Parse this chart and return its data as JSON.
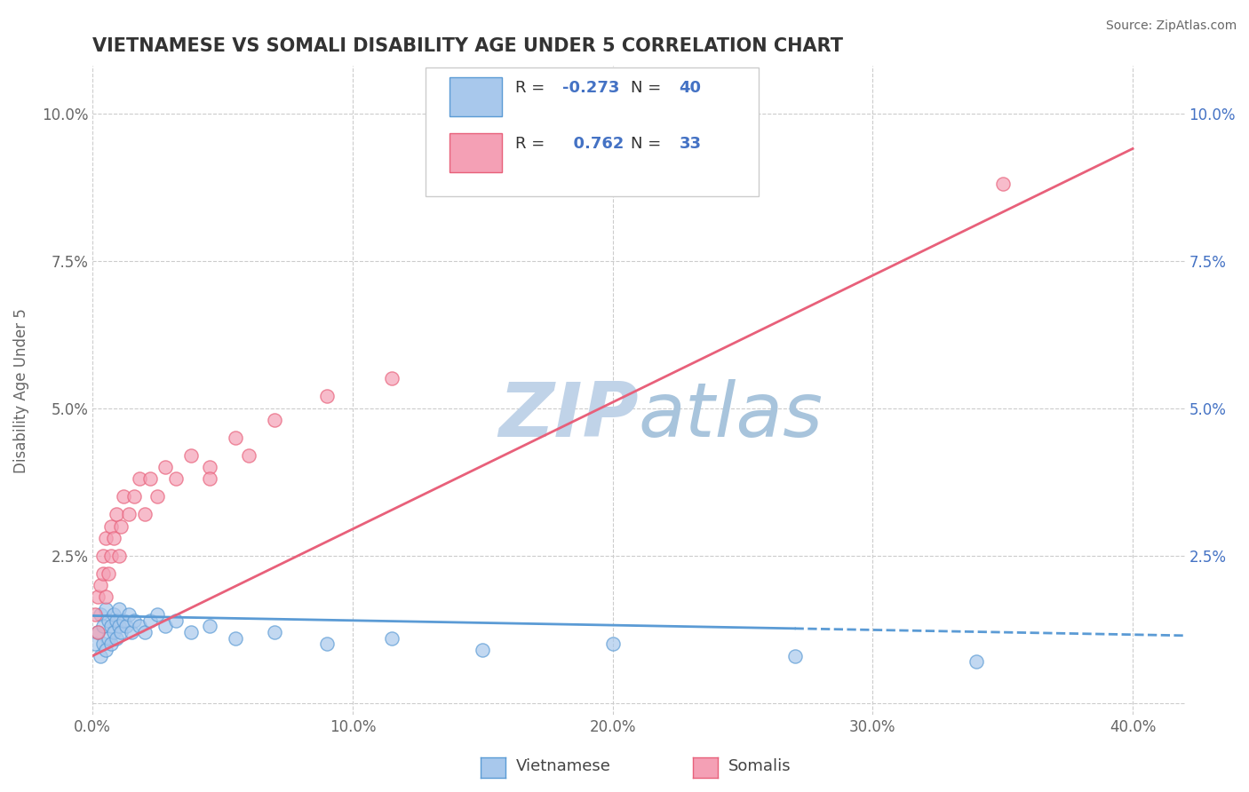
{
  "title": "VIETNAMESE VS SOMALI DISABILITY AGE UNDER 5 CORRELATION CHART",
  "source": "Source: ZipAtlas.com",
  "ylabel": "Disability Age Under 5",
  "xlim": [
    0.0,
    0.42
  ],
  "ylim": [
    -0.002,
    0.108
  ],
  "xticks": [
    0.0,
    0.1,
    0.2,
    0.3,
    0.4
  ],
  "yticks": [
    0.0,
    0.025,
    0.05,
    0.075,
    0.1
  ],
  "xtick_labels": [
    "0.0%",
    "10.0%",
    "20.0%",
    "30.0%",
    "40.0%"
  ],
  "ytick_labels": [
    "",
    "2.5%",
    "5.0%",
    "7.5%",
    "10.0%"
  ],
  "legend_labels": [
    "Vietnamese",
    "Somalis"
  ],
  "viet_R": -0.273,
  "viet_N": 40,
  "som_R": 0.762,
  "som_N": 33,
  "viet_color": "#A8C8EC",
  "som_color": "#F4A0B5",
  "viet_edge_color": "#5B9BD5",
  "som_edge_color": "#E8607A",
  "viet_line_color": "#5B9BD5",
  "som_line_color": "#E8607A",
  "background_color": "#FFFFFF",
  "grid_color": "#CCCCCC",
  "watermark_color": "#C5D8EA",
  "title_color": "#333333",
  "axis_color": "#666666",
  "right_axis_color": "#4472C4",
  "viet_scatter_x": [
    0.001,
    0.002,
    0.003,
    0.003,
    0.004,
    0.004,
    0.005,
    0.005,
    0.006,
    0.006,
    0.007,
    0.007,
    0.008,
    0.008,
    0.009,
    0.009,
    0.01,
    0.01,
    0.011,
    0.012,
    0.013,
    0.014,
    0.015,
    0.016,
    0.018,
    0.02,
    0.022,
    0.025,
    0.028,
    0.032,
    0.038,
    0.045,
    0.055,
    0.07,
    0.09,
    0.115,
    0.15,
    0.2,
    0.27,
    0.34
  ],
  "viet_scatter_y": [
    0.01,
    0.012,
    0.008,
    0.015,
    0.01,
    0.013,
    0.009,
    0.016,
    0.011,
    0.014,
    0.01,
    0.013,
    0.012,
    0.015,
    0.011,
    0.014,
    0.013,
    0.016,
    0.012,
    0.014,
    0.013,
    0.015,
    0.012,
    0.014,
    0.013,
    0.012,
    0.014,
    0.015,
    0.013,
    0.014,
    0.012,
    0.013,
    0.011,
    0.012,
    0.01,
    0.011,
    0.009,
    0.01,
    0.008,
    0.007
  ],
  "som_scatter_x": [
    0.001,
    0.002,
    0.003,
    0.004,
    0.004,
    0.005,
    0.005,
    0.006,
    0.007,
    0.007,
    0.008,
    0.009,
    0.01,
    0.011,
    0.012,
    0.014,
    0.016,
    0.018,
    0.02,
    0.022,
    0.025,
    0.028,
    0.032,
    0.038,
    0.045,
    0.055,
    0.07,
    0.09,
    0.115,
    0.045,
    0.06,
    0.35,
    0.002
  ],
  "som_scatter_y": [
    0.015,
    0.018,
    0.02,
    0.022,
    0.025,
    0.018,
    0.028,
    0.022,
    0.025,
    0.03,
    0.028,
    0.032,
    0.025,
    0.03,
    0.035,
    0.032,
    0.035,
    0.038,
    0.032,
    0.038,
    0.035,
    0.04,
    0.038,
    0.042,
    0.04,
    0.045,
    0.048,
    0.052,
    0.055,
    0.038,
    0.042,
    0.088,
    0.012
  ],
  "viet_line_x": [
    0.0,
    0.42
  ],
  "viet_line_slope": -0.008,
  "viet_line_intercept": 0.0148,
  "som_line_x": [
    0.0,
    0.4
  ],
  "som_line_slope": 0.215,
  "som_line_intercept": 0.008
}
